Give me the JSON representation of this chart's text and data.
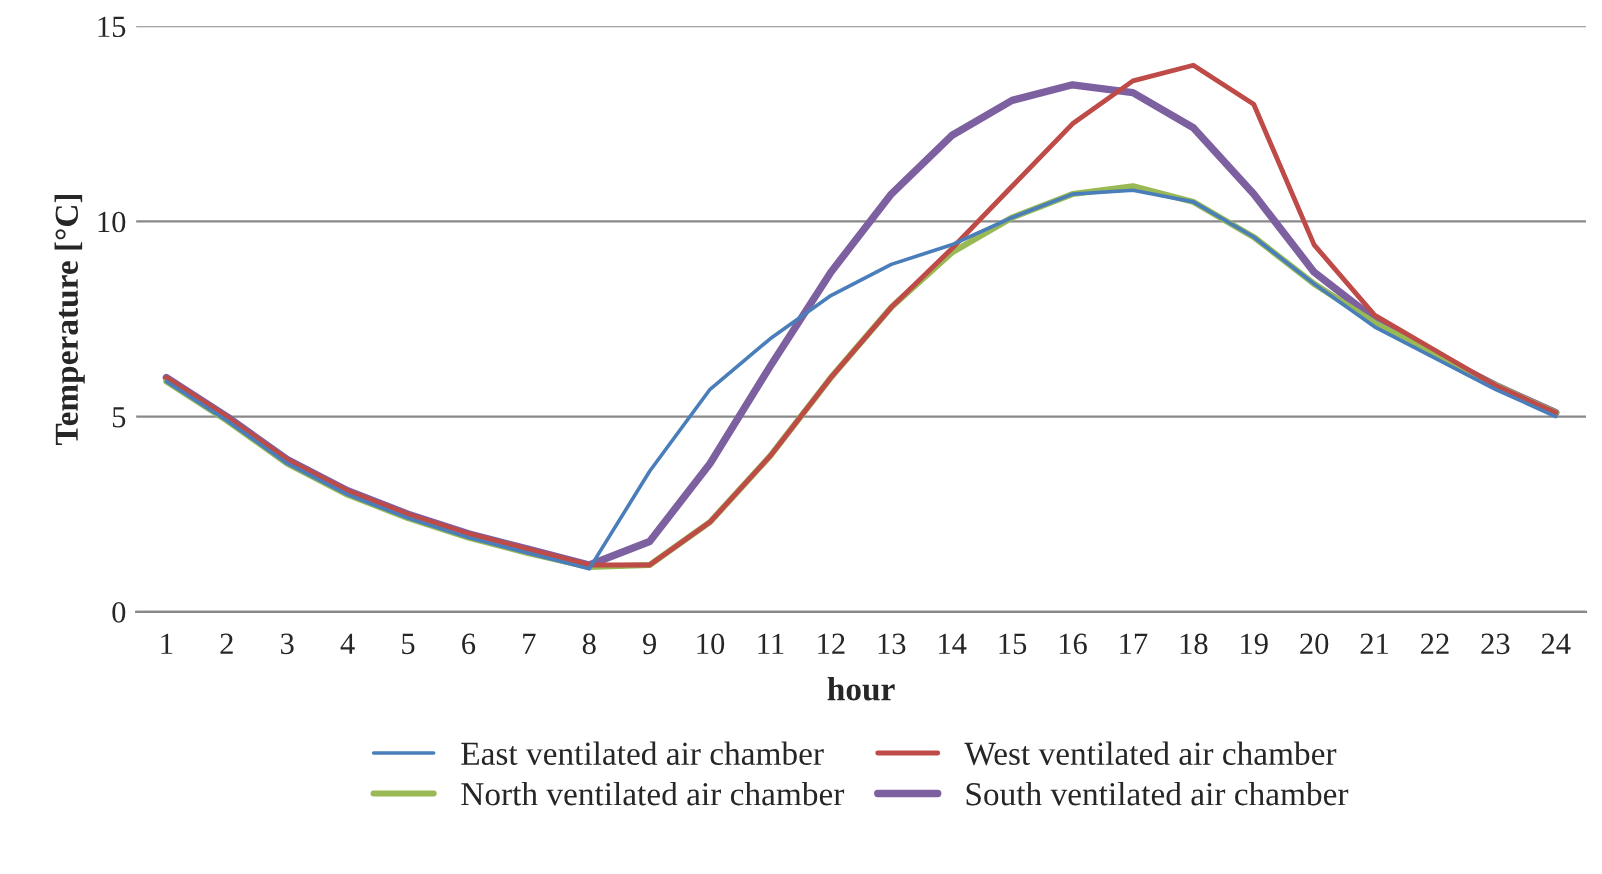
{
  "chart_data": {
    "type": "line",
    "xlabel": "hour",
    "ylabel": "Temperature [°C]",
    "categories": [
      "1",
      "2",
      "3",
      "4",
      "5",
      "6",
      "7",
      "8",
      "9",
      "10",
      "11",
      "12",
      "13",
      "14",
      "15",
      "16",
      "17",
      "18",
      "19",
      "20",
      "21",
      "22",
      "23",
      "24"
    ],
    "series": [
      {
        "name": "East ventilated air chamber",
        "color": "#4a7ebb",
        "values": [
          5.9,
          4.9,
          3.8,
          3.0,
          2.4,
          1.9,
          1.5,
          1.1,
          3.6,
          5.7,
          7.0,
          8.1,
          8.9,
          9.4,
          10.1,
          10.7,
          10.8,
          10.5,
          9.6,
          8.4,
          7.3,
          6.5,
          5.7,
          5.0
        ]
      },
      {
        "name": "West ventilated air chamber",
        "color": "#be4b48",
        "values": [
          6.0,
          5.0,
          3.9,
          3.1,
          2.5,
          2.0,
          1.6,
          1.2,
          1.2,
          2.3,
          4.0,
          6.0,
          7.8,
          9.3,
          10.9,
          12.5,
          13.6,
          14.0,
          13.0,
          9.4,
          7.6,
          6.7,
          5.8,
          5.1
        ]
      },
      {
        "name": "North ventilated air chamber",
        "color": "#98b954",
        "values": [
          5.9,
          4.9,
          3.8,
          3.0,
          2.4,
          1.9,
          1.5,
          1.15,
          1.2,
          2.3,
          4.0,
          6.0,
          7.8,
          9.2,
          10.1,
          10.7,
          10.9,
          10.5,
          9.6,
          8.4,
          7.4,
          6.6,
          5.8,
          5.1
        ]
      },
      {
        "name": "South ventilated air chamber",
        "color": "#7d60a0",
        "values": [
          6.0,
          5.0,
          3.9,
          3.1,
          2.5,
          2.0,
          1.6,
          1.2,
          1.8,
          3.8,
          6.3,
          8.7,
          10.7,
          12.2,
          13.1,
          13.5,
          13.3,
          12.4,
          10.7,
          8.7,
          7.5,
          6.6,
          5.8,
          5.1
        ]
      }
    ],
    "ylim": [
      0,
      15
    ],
    "yticks": [
      0,
      5,
      10,
      15
    ],
    "grid": "y",
    "legend": "bottom",
    "marker": "none",
    "line_style": "solid"
  }
}
